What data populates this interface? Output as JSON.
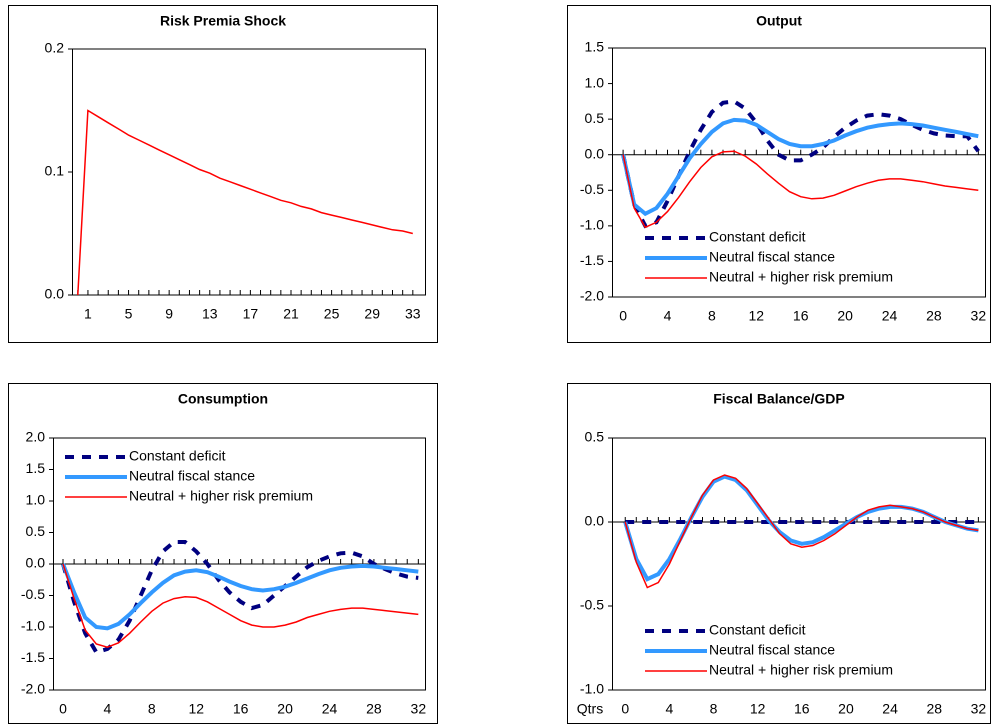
{
  "chart_data": [
    {
      "type": "line",
      "title": "Risk Premia Shock",
      "x": [
        0,
        1,
        2,
        3,
        4,
        5,
        6,
        7,
        8,
        9,
        10,
        11,
        12,
        13,
        14,
        15,
        16,
        17,
        18,
        19,
        20,
        21,
        22,
        23,
        24,
        25,
        26,
        27,
        28,
        29,
        30,
        31,
        32,
        33
      ],
      "xlim": [
        -0.57,
        34.2
      ],
      "xticks": [
        1,
        5,
        9,
        13,
        17,
        21,
        25,
        29,
        33
      ],
      "ylim": [
        0,
        0.2
      ],
      "yticks": [
        {
          "value": 0,
          "label": "0.0"
        },
        0.1,
        0.2
      ],
      "series": [
        {
          "color": "#ff0000",
          "style": "solid",
          "width": 1.5,
          "values": [
            0,
            0.15,
            0.145,
            0.14,
            0.135,
            0.13,
            0.126,
            0.122,
            0.118,
            0.114,
            0.11,
            0.106,
            0.102,
            0.099,
            0.095,
            0.092,
            0.089,
            0.086,
            0.083,
            0.08,
            0.077,
            0.075,
            0.072,
            0.07,
            0.067,
            0.065,
            0.063,
            0.061,
            0.059,
            0.057,
            0.055,
            0.053,
            0.052,
            0.05
          ]
        }
      ]
    },
    {
      "type": "line",
      "title": "Output",
      "x": [
        0,
        1,
        2,
        3,
        4,
        5,
        6,
        7,
        8,
        9,
        10,
        11,
        12,
        13,
        14,
        15,
        16,
        17,
        18,
        19,
        20,
        21,
        22,
        23,
        24,
        25,
        26,
        27,
        28,
        29,
        30,
        31,
        32
      ],
      "xlim": [
        -1,
        32.6
      ],
      "xticks": [
        0,
        4,
        8,
        12,
        16,
        20,
        24,
        28,
        32
      ],
      "ylim": [
        -2,
        1.5
      ],
      "yticks": [
        {
          "value": -2,
          "label": "-2.0"
        },
        -1.5,
        {
          "value": -1,
          "label": "-1.0"
        },
        -0.5,
        {
          "value": 0,
          "label": "0.0"
        },
        0.5,
        {
          "value": 1,
          "label": "1.0"
        },
        1.5
      ],
      "legend": "lower left",
      "series": [
        {
          "name": "Constant deficit",
          "color": "#000080",
          "style": "dashed",
          "width": 4,
          "values": [
            0,
            -0.7,
            -1.0,
            -0.95,
            -0.65,
            -0.3,
            0.05,
            0.35,
            0.6,
            0.73,
            0.75,
            0.65,
            0.45,
            0.2,
            0.0,
            -0.08,
            -0.08,
            0.0,
            0.1,
            0.25,
            0.38,
            0.48,
            0.55,
            0.57,
            0.55,
            0.5,
            0.42,
            0.35,
            0.3,
            0.27,
            0.26,
            0.26,
            0.05
          ]
        },
        {
          "name": "Neutral fiscal stance",
          "color": "#3399ff",
          "style": "solid",
          "width": 4,
          "values": [
            0,
            -0.7,
            -0.83,
            -0.75,
            -0.55,
            -0.3,
            -0.05,
            0.15,
            0.32,
            0.44,
            0.49,
            0.48,
            0.42,
            0.32,
            0.22,
            0.15,
            0.12,
            0.12,
            0.15,
            0.2,
            0.27,
            0.33,
            0.38,
            0.41,
            0.43,
            0.44,
            0.43,
            0.41,
            0.38,
            0.35,
            0.32,
            0.29,
            0.26
          ]
        },
        {
          "name": "Neutral + higher risk premium",
          "color": "#ff0000",
          "style": "solid",
          "width": 1.5,
          "values": [
            0,
            -0.75,
            -1.02,
            -0.95,
            -0.8,
            -0.6,
            -0.38,
            -0.18,
            -0.03,
            0.04,
            0.05,
            -0.02,
            -0.13,
            -0.27,
            -0.4,
            -0.52,
            -0.59,
            -0.62,
            -0.61,
            -0.57,
            -0.51,
            -0.45,
            -0.4,
            -0.36,
            -0.34,
            -0.34,
            -0.36,
            -0.38,
            -0.41,
            -0.44,
            -0.46,
            -0.48,
            -0.5
          ]
        }
      ]
    },
    {
      "type": "line",
      "title": "Consumption",
      "x": [
        0,
        1,
        2,
        3,
        4,
        5,
        6,
        7,
        8,
        9,
        10,
        11,
        12,
        13,
        14,
        15,
        16,
        17,
        18,
        19,
        20,
        21,
        22,
        23,
        24,
        25,
        26,
        27,
        28,
        29,
        30,
        31,
        32
      ],
      "xlim": [
        -0.9,
        32.6
      ],
      "xticks": [
        0,
        4,
        8,
        12,
        16,
        20,
        24,
        28,
        32
      ],
      "ylim": [
        -2,
        2
      ],
      "yticks": [
        {
          "value": -2,
          "label": "-2.0"
        },
        -1.5,
        {
          "value": -1,
          "label": "-1.0"
        },
        -0.5,
        {
          "value": 0,
          "label": "0.0"
        },
        0.5,
        {
          "value": 1,
          "label": "1.0"
        },
        1.5,
        {
          "value": 2,
          "label": "2.0"
        }
      ],
      "legend": "upper left",
      "series": [
        {
          "name": "Constant deficit",
          "color": "#000080",
          "style": "dashed",
          "width": 4,
          "values": [
            0,
            -0.6,
            -1.1,
            -1.4,
            -1.35,
            -1.2,
            -0.9,
            -0.5,
            -0.1,
            0.2,
            0.35,
            0.35,
            0.2,
            0.0,
            -0.25,
            -0.45,
            -0.6,
            -0.7,
            -0.65,
            -0.5,
            -0.35,
            -0.2,
            -0.05,
            0.05,
            0.12,
            0.17,
            0.18,
            0.12,
            0.0,
            -0.08,
            -0.15,
            -0.2,
            -0.22
          ]
        },
        {
          "name": "Neutral fiscal stance",
          "color": "#3399ff",
          "style": "solid",
          "width": 4,
          "values": [
            0,
            -0.45,
            -0.85,
            -1.0,
            -1.02,
            -0.95,
            -0.8,
            -0.62,
            -0.45,
            -0.3,
            -0.18,
            -0.12,
            -0.1,
            -0.13,
            -0.2,
            -0.28,
            -0.35,
            -0.4,
            -0.42,
            -0.4,
            -0.36,
            -0.3,
            -0.23,
            -0.16,
            -0.1,
            -0.06,
            -0.04,
            -0.03,
            -0.04,
            -0.06,
            -0.08,
            -0.1,
            -0.12
          ]
        },
        {
          "name": "Neutral + higher risk premium",
          "color": "#ff0000",
          "style": "solid",
          "width": 1.5,
          "values": [
            0,
            -0.55,
            -1.05,
            -1.27,
            -1.32,
            -1.25,
            -1.1,
            -0.92,
            -0.75,
            -0.62,
            -0.55,
            -0.52,
            -0.53,
            -0.6,
            -0.7,
            -0.8,
            -0.9,
            -0.97,
            -1.0,
            -1.0,
            -0.97,
            -0.92,
            -0.85,
            -0.8,
            -0.75,
            -0.72,
            -0.7,
            -0.7,
            -0.72,
            -0.74,
            -0.76,
            -0.78,
            -0.8
          ]
        }
      ]
    },
    {
      "type": "line",
      "title": "Fiscal Balance/GDP",
      "xlabel": "Qtrs",
      "x": [
        0,
        1,
        2,
        3,
        4,
        5,
        6,
        7,
        8,
        9,
        10,
        11,
        12,
        13,
        14,
        15,
        16,
        17,
        18,
        19,
        20,
        21,
        22,
        23,
        24,
        25,
        26,
        27,
        28,
        29,
        30,
        31,
        32
      ],
      "xlim": [
        -1.2,
        32.6
      ],
      "xticks": [
        0,
        4,
        8,
        12,
        16,
        20,
        24,
        28,
        32
      ],
      "ylim": [
        -1,
        0.5
      ],
      "yticks": [
        {
          "value": -1,
          "label": "-1.0"
        },
        -0.5,
        {
          "value": 0,
          "label": "0.0"
        },
        0.5
      ],
      "legend": "lower left",
      "series": [
        {
          "name": "Constant deficit",
          "color": "#000080",
          "style": "dashed",
          "width": 4,
          "values": [
            0,
            0,
            0,
            0,
            0,
            0,
            0,
            0,
            0,
            0,
            0,
            0,
            0,
            0,
            0,
            0,
            0,
            0,
            0,
            0,
            0,
            0,
            0,
            0,
            0,
            0,
            0,
            0,
            0,
            0,
            0,
            0,
            0
          ]
        },
        {
          "name": "Neutral fiscal stance",
          "color": "#3399ff",
          "style": "solid",
          "width": 4,
          "values": [
            0,
            -0.22,
            -0.34,
            -0.31,
            -0.22,
            -0.1,
            0.03,
            0.15,
            0.24,
            0.27,
            0.25,
            0.19,
            0.1,
            0.01,
            -0.06,
            -0.11,
            -0.13,
            -0.12,
            -0.09,
            -0.05,
            -0.01,
            0.03,
            0.06,
            0.08,
            0.09,
            0.09,
            0.08,
            0.06,
            0.03,
            0.0,
            -0.02,
            -0.04,
            -0.05
          ]
        },
        {
          "name": "Neutral + higher risk premium",
          "color": "#ff0000",
          "style": "solid",
          "width": 1.5,
          "values": [
            0,
            -0.24,
            -0.39,
            -0.36,
            -0.25,
            -0.11,
            0.03,
            0.16,
            0.25,
            0.28,
            0.26,
            0.2,
            0.11,
            0.02,
            -0.07,
            -0.13,
            -0.15,
            -0.14,
            -0.11,
            -0.07,
            -0.02,
            0.03,
            0.07,
            0.09,
            0.1,
            0.09,
            0.08,
            0.06,
            0.03,
            0.0,
            -0.02,
            -0.04,
            -0.05
          ]
        }
      ]
    }
  ]
}
